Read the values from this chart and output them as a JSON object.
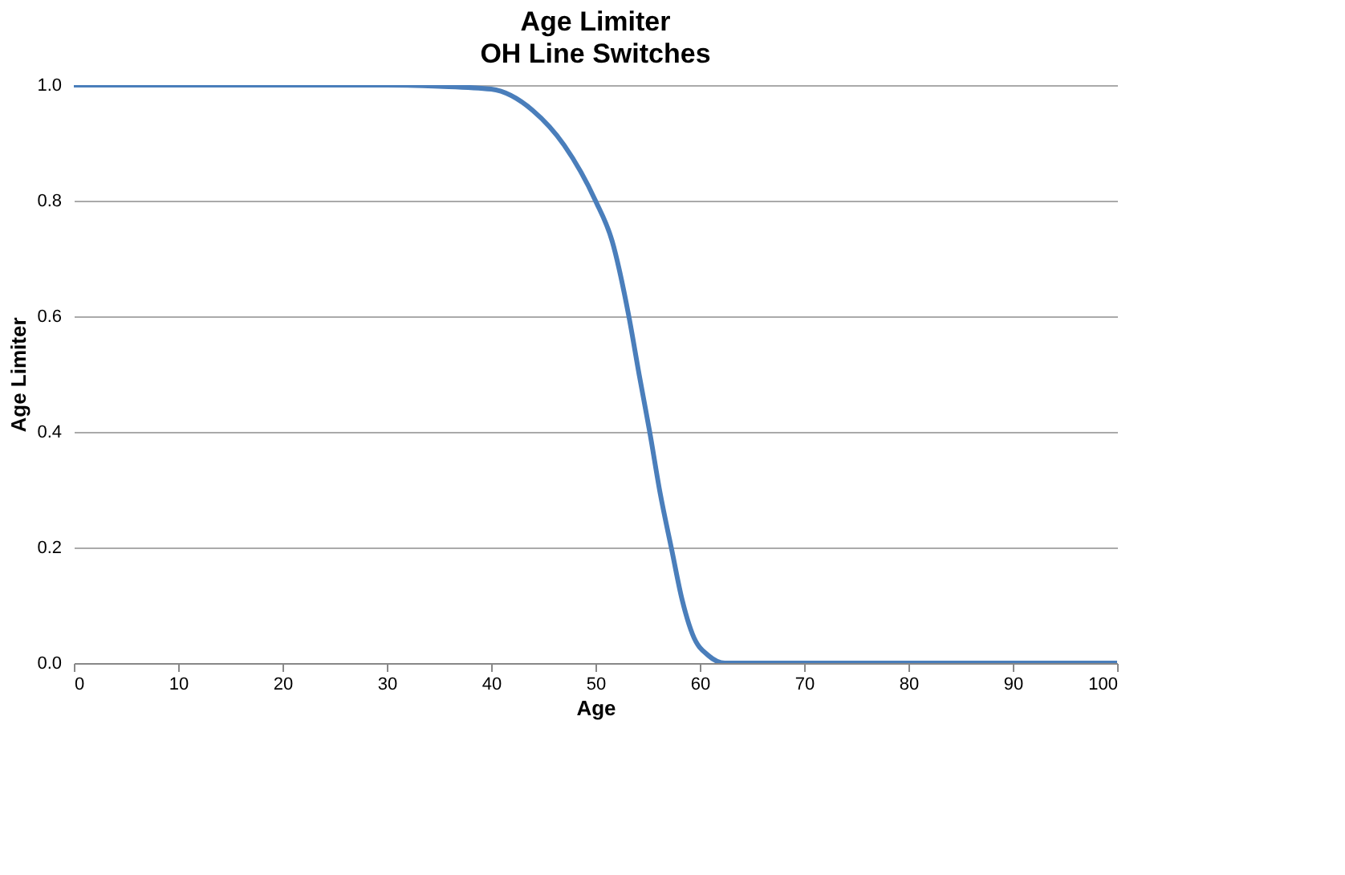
{
  "chart_data": {
    "type": "line",
    "title": "Age Limiter",
    "subtitle": "OH Line Switches",
    "xlabel": "Age",
    "ylabel": "Age Limiter",
    "x": [
      0,
      10,
      20,
      30,
      35,
      40,
      44,
      47,
      50,
      51.6,
      53.2,
      54.2,
      55.2,
      56.2,
      57.3,
      58.3,
      59.3,
      60.9,
      62.4,
      65,
      70,
      80,
      90,
      100
    ],
    "series": [
      {
        "color": "#4a7ebb",
        "values": [
          1.0,
          1.0,
          1.0,
          1.0,
          0.998,
          0.993,
          0.956,
          0.896,
          0.8,
          0.73,
          0.6,
          0.498,
          0.4,
          0.294,
          0.197,
          0.11,
          0.05,
          0.012,
          0.0,
          0.0,
          0.0,
          0.0,
          0.0,
          0.0
        ]
      }
    ],
    "xlim": [
      0,
      100
    ],
    "xticks": [
      0,
      10,
      20,
      30,
      40,
      50,
      60,
      70,
      80,
      90,
      100
    ],
    "ylim": [
      0,
      1
    ],
    "yticks": [
      {
        "value": 0,
        "label": "0.0"
      },
      {
        "value": 0.2,
        "label": "0.2"
      },
      {
        "value": 0.4,
        "label": "0.4"
      },
      {
        "value": 0.6,
        "label": "0.6"
      },
      {
        "value": 0.8,
        "label": "0.8"
      },
      {
        "value": 1,
        "label": "1.0"
      }
    ],
    "grid": "y",
    "legend": false,
    "marker": "none",
    "line_style": "solid"
  }
}
